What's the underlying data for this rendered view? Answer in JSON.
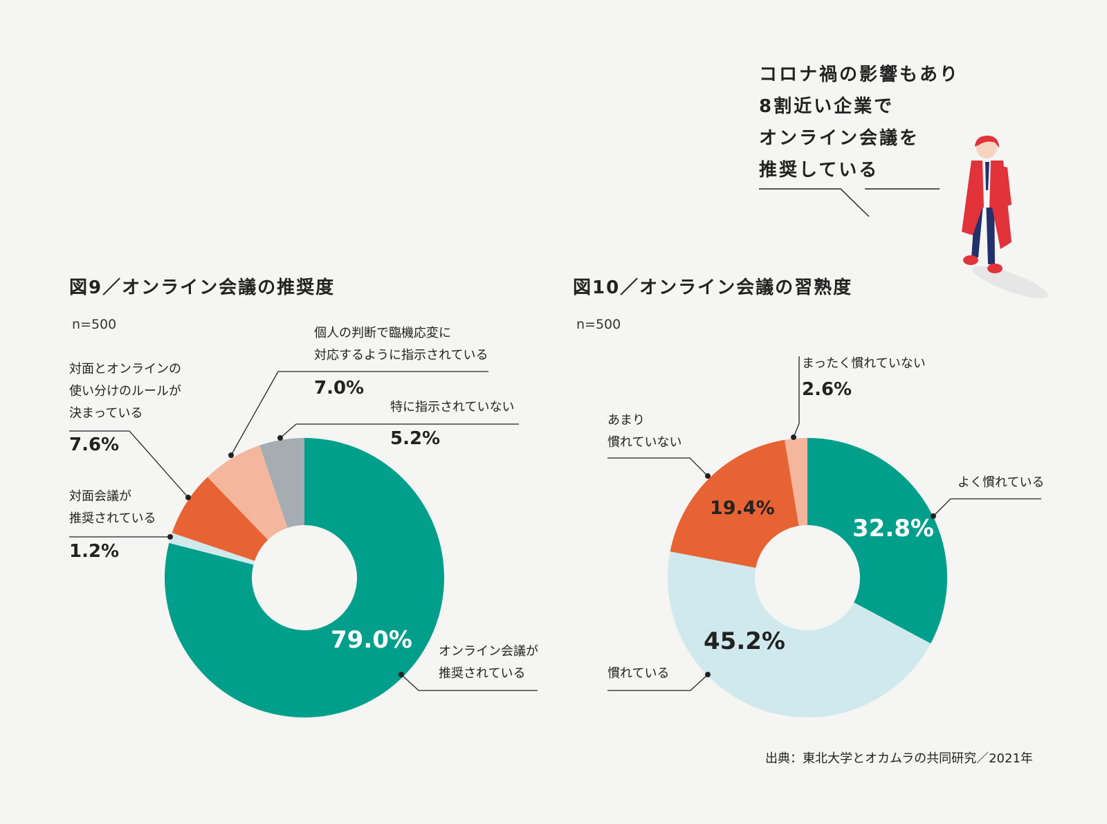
{
  "callout": {
    "lines": [
      "コロナ禍の影響もあり",
      "8割近い企業で",
      "オンライン会議を",
      "推奨している"
    ]
  },
  "source_note": "出典：東北大学とオカムラの共同研究／2021年",
  "colors": {
    "teal": "#009f8b",
    "light_blue": "#d0e9ec",
    "orange": "#e86333",
    "peach": "#f4b79d",
    "gray": "#a5adb3",
    "background": "#f5f5f4",
    "character_red": "#e2323a",
    "character_navy": "#22306b"
  },
  "chart_data": [
    {
      "type": "pie",
      "variant": "donut",
      "title": "図9／オンライン会議の推奨度",
      "sample": "n=500",
      "slices": [
        {
          "key": "online",
          "label_lines": [
            "オンライン会議が",
            "推奨されている"
          ],
          "value": 79.0,
          "value_label": "79.0%",
          "color": "#009f8b"
        },
        {
          "key": "face",
          "label_lines": [
            "対面会議が",
            "推奨されている"
          ],
          "value": 1.2,
          "value_label": "1.2%",
          "color": "#d0e9ec"
        },
        {
          "key": "rules",
          "label_lines": [
            "対面とオンラインの",
            "使い分けのルールが",
            "決まっている"
          ],
          "value": 7.6,
          "value_label": "7.6%",
          "color": "#e86333"
        },
        {
          "key": "case",
          "label_lines": [
            "個人の判断で臨機応変に",
            "対応するように指示されている"
          ],
          "value": 7.0,
          "value_label": "7.0%",
          "color": "#f4b79d"
        },
        {
          "key": "none",
          "label_lines": [
            "特に指示されていない"
          ],
          "value": 5.2,
          "value_label": "5.2%",
          "color": "#a5adb3"
        }
      ]
    },
    {
      "type": "pie",
      "variant": "donut",
      "title": "図10／オンライン会議の習熟度",
      "sample": "n=500",
      "slices": [
        {
          "key": "very",
          "label_lines": [
            "よく慣れている"
          ],
          "value": 32.8,
          "value_label": "32.8%",
          "color": "#009f8b"
        },
        {
          "key": "used",
          "label_lines": [
            "慣れている"
          ],
          "value": 45.2,
          "value_label": "45.2%",
          "color": "#d0e9ec"
        },
        {
          "key": "notmuch",
          "label_lines": [
            "あまり",
            "慣れていない"
          ],
          "value": 19.4,
          "value_label": "19.4%",
          "color": "#e86333"
        },
        {
          "key": "notatall",
          "label_lines": [
            "まったく慣れていない"
          ],
          "value": 2.6,
          "value_label": "2.6%",
          "color": "#f4b79d"
        }
      ]
    }
  ]
}
